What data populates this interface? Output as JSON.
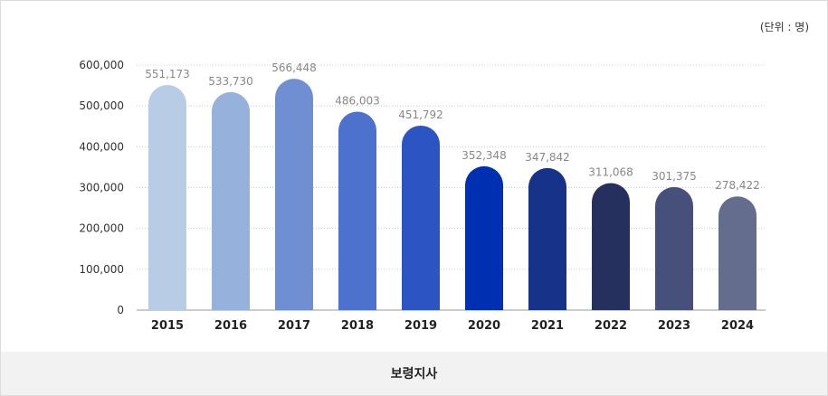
{
  "unit_label": "(단위 : 명)",
  "footer_label": "보령지사",
  "chart_data": {
    "type": "bar",
    "categories": [
      "2015",
      "2016",
      "2017",
      "2018",
      "2019",
      "2020",
      "2021",
      "2022",
      "2023",
      "2024"
    ],
    "values": [
      551173,
      533730,
      566448,
      486003,
      451792,
      352348,
      347842,
      311068,
      301375,
      278422
    ],
    "value_labels": [
      "551,173",
      "533,730",
      "566,448",
      "486,003",
      "451,792",
      "352,348",
      "347,842",
      "311,068",
      "301,375",
      "278,422"
    ],
    "bar_colors": [
      "#b8cce6",
      "#95b1dc",
      "#6f8fd2",
      "#4d72cd",
      "#2c54c3",
      "#0030b2",
      "#163389",
      "#26305f",
      "#46507b",
      "#646d8d"
    ],
    "ylim": [
      0,
      600000
    ],
    "yticks": [
      0,
      100000,
      200000,
      300000,
      400000,
      500000,
      600000
    ],
    "ytick_labels": [
      "0",
      "100,000",
      "200,000",
      "300,000",
      "400,000",
      "500,000",
      "600,000"
    ],
    "grid": true,
    "title": "",
    "xlabel": "",
    "ylabel": ""
  }
}
